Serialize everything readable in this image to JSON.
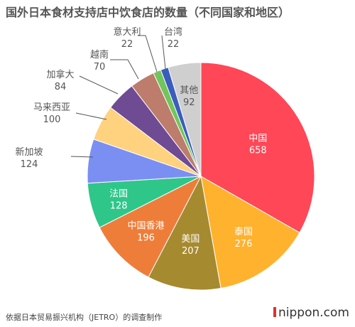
{
  "chart_data": {
    "type": "pie",
    "title": "国外日本食材支持店中饮食店的数量（不同国家和地区）",
    "slices": [
      {
        "label": "中国",
        "value": 658,
        "color": "#ff4757",
        "label_pos": "inside",
        "text_color": "#ffffff"
      },
      {
        "label": "泰国",
        "value": 276,
        "color": "#ffb22e",
        "label_pos": "inside",
        "text_color": "#ffffff"
      },
      {
        "label": "美国",
        "value": 207,
        "color": "#a58a30",
        "label_pos": "inside",
        "text_color": "#ffffff"
      },
      {
        "label": "中国香港",
        "value": 196,
        "color": "#ee7d3a",
        "label_pos": "inside",
        "text_color": "#ffffff"
      },
      {
        "label": "法国",
        "value": 128,
        "color": "#2fc68a",
        "label_pos": "inside",
        "text_color": "#ffffff"
      },
      {
        "label": "新加坡",
        "value": 124,
        "color": "#7b8ff2",
        "label_pos": "outside",
        "text_color": "#555555"
      },
      {
        "label": "马来西亚",
        "value": 100,
        "color": "#ffd27f",
        "label_pos": "outside",
        "text_color": "#555555"
      },
      {
        "label": "加拿大",
        "value": 84,
        "color": "#6e4b93",
        "label_pos": "outside",
        "text_color": "#555555"
      },
      {
        "label": "越南",
        "value": 70,
        "color": "#bd7c6c",
        "label_pos": "outside",
        "text_color": "#555555"
      },
      {
        "label": "意大利",
        "value": 22,
        "color": "#72c55c",
        "label_pos": "outside",
        "text_color": "#555555"
      },
      {
        "label": "台湾",
        "value": 22,
        "color": "#3b5ebc",
        "label_pos": "outside",
        "text_color": "#555555"
      },
      {
        "label": "其他",
        "value": 92,
        "color": "#cfcfcf",
        "label_pos": "inside",
        "text_color": "#555555"
      }
    ]
  },
  "footer": {
    "source": "依据日本贸易振兴机构（JETRO）的调查制作",
    "brand_name": "nippon",
    "brand_domain": ".com"
  }
}
